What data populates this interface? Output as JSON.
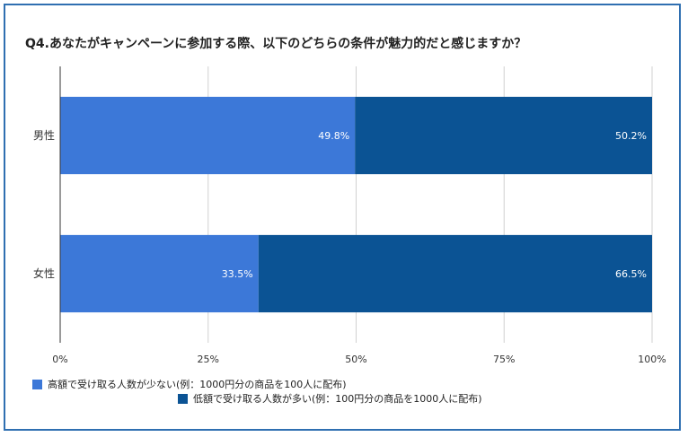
{
  "chart_data": {
    "type": "bar",
    "orientation": "horizontal",
    "stacked": true,
    "title": "Q4.あなたがキャンペーンに参加する際、以下のどちらの条件が魅力的だと感じますか？",
    "categories": [
      "男性",
      "女性"
    ],
    "series": [
      {
        "name": "高額で受け取る人数が少ない(例：1000円分の商品を100人に配布)",
        "values": [
          49.8,
          33.5
        ],
        "labels": [
          "49.8%",
          "33.5%"
        ],
        "color": "#3c78d8"
      },
      {
        "name": "低額で受け取る人数が多い(例：100円分の商品を1000人に配布)",
        "values": [
          50.2,
          66.5
        ],
        "labels": [
          "50.2%",
          "66.5%"
        ],
        "color": "#0b5394"
      }
    ],
    "xlim": [
      0,
      100
    ],
    "xticks": [
      "0%",
      "25%",
      "50%",
      "75%",
      "100%"
    ],
    "grid": true,
    "legend_position": "bottom"
  }
}
